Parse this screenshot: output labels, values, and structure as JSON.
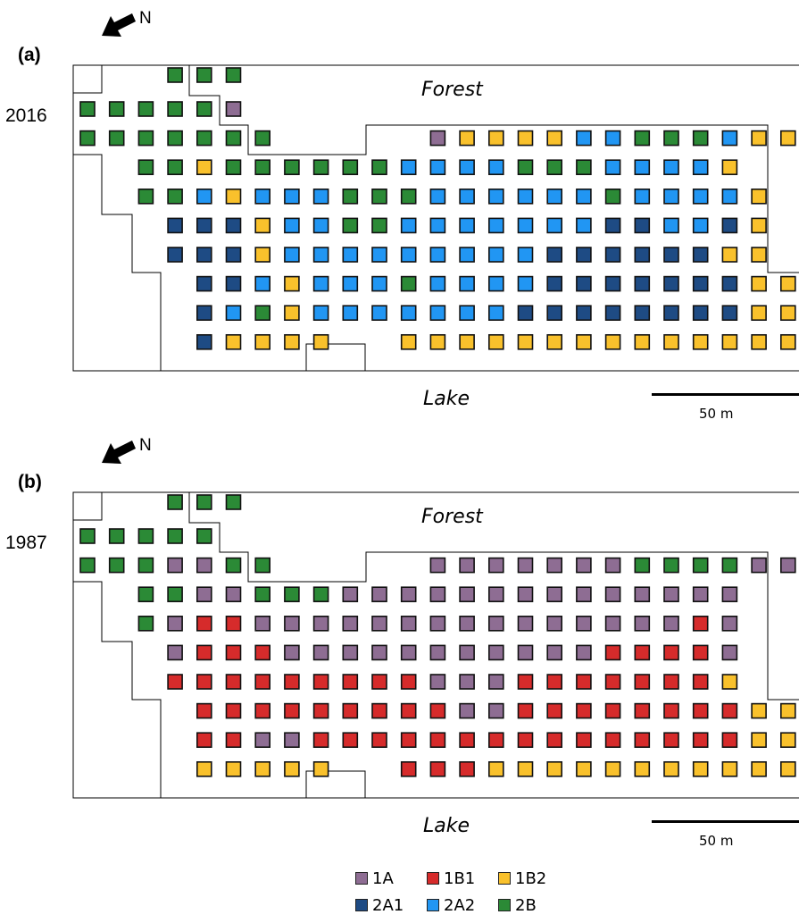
{
  "north_label": "N",
  "forest_label": "Forest",
  "lake_label": "Lake",
  "scale_label": "50 m",
  "colors": {
    "1A": "#8e6d93",
    "1B1": "#d62b2b",
    "1B2": "#f9c12c",
    "2A1": "#1e4b84",
    "2A2": "#2196f3",
    "2B": "#2b8a36"
  },
  "legend": [
    {
      "code": "1A",
      "label": "1A"
    },
    {
      "code": "1B1",
      "label": "1B1"
    },
    {
      "code": "1B2",
      "label": "1B2"
    },
    {
      "code": "2A1",
      "label": "2A1"
    },
    {
      "code": "2A2",
      "label": "2A2"
    },
    {
      "code": "2B",
      "label": "2B"
    }
  ],
  "panels": [
    {
      "letter": "(a)",
      "year": "2016",
      "rows": [
        "...BBB",
        "BBBBBa",
        "BBBBBBB.....aYYYYLLBBBLYYYY",
        "..BBYBBBBBBLLLLBBBLLLLY",
        "..BBLYLLLBBBLLLLLLBLLLLY",
        "...DDDYLLBBLLLLLLLDDLLDY",
        "...DDDYLLLLLLLLLDDDDDDYY",
        "....DDLYLLLBLLLLDDDDDDDYY",
        "....DLBYLLLLLLLDDDDDDDDYY",
        "....DYYYY..YYYYYYYYYYYYYY"
      ]
    },
    {
      "letter": "(b)",
      "year": "1987",
      "rows": [
        "...BBB",
        "BBBBB",
        "BBBaaBB.....aaaaaaaBBBBaaa",
        "..BBaaBBBaaaaaaaaaaaaaa",
        "..BaRRaaaaaaaaaaaaaaaRa",
        "...aRRRaaaaaaaaaaaRRRRa",
        "...RRRRRRRRRaaaRRRRRRRY",
        "....RRRRRRRRRaaRRRRRRRRYY",
        "....RRaaRRRRRRRRRRRRRRRYY",
        "....YYYYY..RRRYYYYYYYYYYY"
      ]
    }
  ]
}
